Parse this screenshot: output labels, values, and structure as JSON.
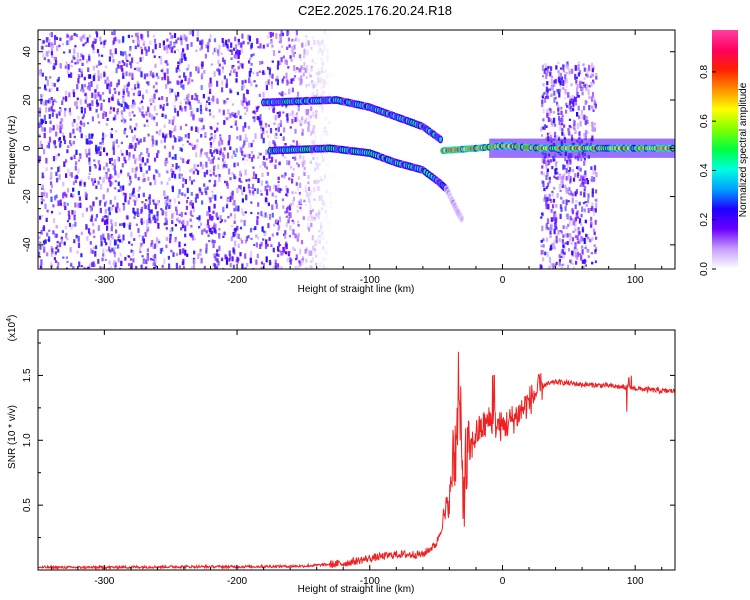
{
  "title": "C2E2.2025.176.20.24.R18",
  "colors": {
    "snr_line": "#ee2222",
    "axis": "#000000",
    "background": "#ffffff"
  },
  "chart_data": [
    {
      "type": "heatmap",
      "xlabel": "Height of straight line (km)",
      "ylabel": "Frequency (Hz)",
      "xlim": [
        -350,
        130
      ],
      "ylim": [
        -50,
        49
      ],
      "x_ticks": [
        -300,
        -200,
        -100,
        0,
        100
      ],
      "y_ticks": [
        -40,
        -20,
        0,
        20,
        40
      ],
      "colorbar": {
        "label": "Normalized spectral amplitude",
        "range": [
          0.0,
          0.97
        ],
        "ticks": [
          0.0,
          0.2,
          0.4,
          0.6,
          0.8
        ],
        "colormap": [
          "#ffffff",
          "#c8a0ff",
          "#6a00ff",
          "#1e00ff",
          "#00a0ff",
          "#00ffe0",
          "#00ff40",
          "#80ff00",
          "#ffff00",
          "#ff9000",
          "#ff2000",
          "#ff0060",
          "#ff40a0"
        ]
      },
      "features": [
        {
          "name": "noise",
          "x_range": [
            -350,
            -130
          ],
          "y_range": [
            -50,
            49
          ],
          "amplitude": 0.18
        },
        {
          "name": "branch_upper",
          "points": [
            [
              -180,
              19
            ],
            [
              -125,
              20
            ],
            [
              -100,
              17
            ],
            [
              -80,
              13
            ],
            [
              -60,
              9
            ],
            [
              -45,
              3
            ]
          ],
          "amplitude": 0.45
        },
        {
          "name": "branch_lower",
          "points": [
            [
              -175,
              -1
            ],
            [
              -130,
              0
            ],
            [
              -100,
              -2
            ],
            [
              -80,
              -6
            ],
            [
              -60,
              -9
            ],
            [
              -48,
              -14
            ],
            [
              -42,
              -17
            ]
          ],
          "amplitude": 0.45
        },
        {
          "name": "tail",
          "points": [
            [
              -42,
              -17
            ],
            [
              -35,
              -25
            ],
            [
              -30,
              -30
            ]
          ],
          "amplitude": 0.1
        },
        {
          "name": "carrier",
          "points": [
            [
              -45,
              -1
            ],
            [
              -20,
              0
            ],
            [
              0,
              1
            ],
            [
              30,
              0
            ],
            [
              60,
              0
            ],
            [
              130,
              0
            ]
          ],
          "amplitude": 0.85
        },
        {
          "name": "burst",
          "x_range": [
            28,
            70
          ],
          "y_range": [
            -50,
            36
          ],
          "amplitude": 0.3
        }
      ]
    },
    {
      "type": "line",
      "xlabel": "Height of straight line (km)",
      "ylabel": "SNR (10 * v/v)",
      "y_scale_label": "(x10",
      "y_scale_exponent": "4",
      "xlim": [
        -350,
        130
      ],
      "ylim": [
        0,
        1.85
      ],
      "x_ticks": [
        -300,
        -200,
        -100,
        0,
        100
      ],
      "y_ticks": [
        0.5,
        1.0,
        1.5
      ],
      "y_tick_labels": [
        "0.5",
        "1.0",
        "1.5"
      ],
      "series": [
        {
          "color": "#ee2222",
          "x": [
            -350,
            -300,
            -250,
            -200,
            -150,
            -120,
            -100,
            -80,
            -60,
            -50,
            -45,
            -40,
            -35,
            -32,
            -30,
            -28,
            -25,
            -20,
            -10,
            0,
            10,
            20,
            30,
            40,
            60,
            80,
            100,
            110,
            120,
            130
          ],
          "y": [
            0.02,
            0.02,
            0.025,
            0.025,
            0.03,
            0.05,
            0.09,
            0.12,
            0.12,
            0.2,
            0.35,
            0.55,
            0.95,
            1.2,
            0.6,
            0.75,
            0.9,
            1.05,
            1.15,
            1.1,
            1.18,
            1.3,
            1.42,
            1.45,
            1.43,
            1.42,
            1.4,
            1.39,
            1.38,
            1.38
          ]
        }
      ]
    }
  ]
}
